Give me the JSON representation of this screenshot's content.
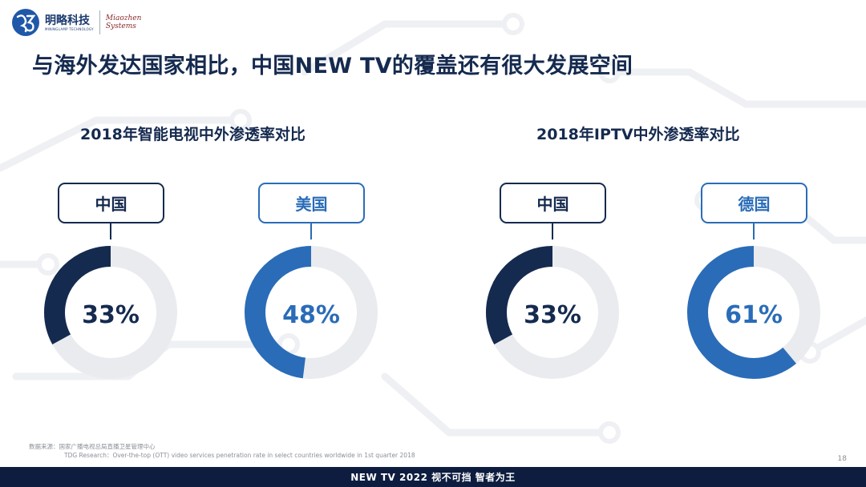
{
  "header": {
    "logo_cn": "明略科技",
    "logo_sub": "MININGLAMP TECHNOLOGY",
    "logo_en_line1": "Miaozhen",
    "logo_en_line2": "Systems",
    "title": "与海外发达国家相比，中国NEW TV的覆盖还有很大发展空间"
  },
  "sections": [
    {
      "title": "2018年智能电视中外渗透率对比"
    },
    {
      "title": "2018年IPTV中外渗透率对比"
    }
  ],
  "colors": {
    "navy": "#152a4f",
    "blue": "#2a6cb8",
    "track": "#e9ebef",
    "footer_bg": "#0e1d3f"
  },
  "chart_data": [
    {
      "type": "pie",
      "variant": "donut",
      "title": "2018年智能电视中外渗透率对比",
      "categories": [
        "中国",
        "美国"
      ],
      "values": [
        33,
        48
      ],
      "value_labels": [
        "33%",
        "48%"
      ],
      "unit": "%",
      "colors": [
        "#152a4f",
        "#2a6cb8"
      ]
    },
    {
      "type": "pie",
      "variant": "donut",
      "title": "2018年IPTV中外渗透率对比",
      "categories": [
        "中国",
        "德国"
      ],
      "values": [
        33,
        61
      ],
      "value_labels": [
        "33%",
        "61%"
      ],
      "unit": "%",
      "colors": [
        "#152a4f",
        "#2a6cb8"
      ]
    }
  ],
  "source": {
    "line1": "数据来源：国家广播电视总局直播卫星管理中心",
    "line2": "TDG Research：Over-the-top (OTT) video services penetration rate in select countries worldwide in 1st quarter 2018"
  },
  "page_number": "18",
  "footer": "NEW TV 2022  视不可挡 智者为王"
}
